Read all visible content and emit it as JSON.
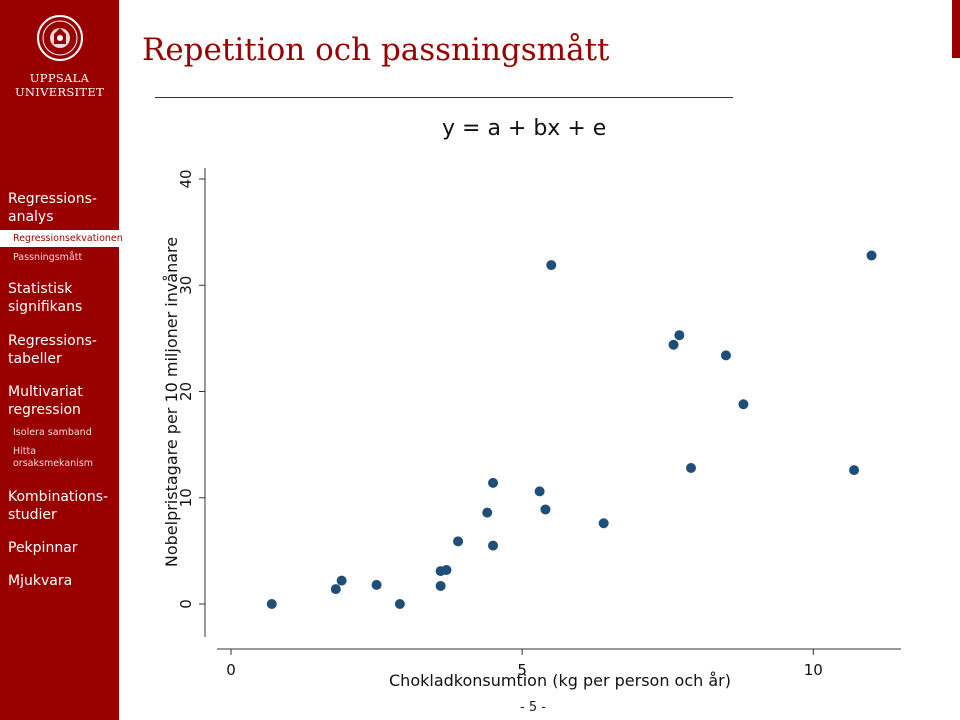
{
  "header": {
    "title": "Repetition och passningsmått",
    "formula": "y = a + bx + e",
    "logo_line1": "UPPSALA",
    "logo_line2": "UNIVERSITET"
  },
  "sidebar": {
    "items": [
      {
        "label": "Regressions-analys",
        "line1": "Regressions-",
        "line2": "analys",
        "subitems": [
          "Regressionsekvationen",
          "Passningsmått"
        ],
        "active_sub": "Regressionsekvationen"
      },
      {
        "label": "Statistisk signifikans",
        "line1": "Statistisk",
        "line2": "signifikans"
      },
      {
        "label": "Regressions-tabeller",
        "line1": "Regressions-",
        "line2": "tabeller"
      },
      {
        "label": "Multivariat regression",
        "line1": "Multivariat",
        "line2": "regression",
        "subitems": [
          "Isolera samband",
          "Hitta orsaksmekanism"
        ],
        "sub2_line1": "Hitta",
        "sub2_line2": "orsaksmekanism"
      },
      {
        "label": "Kombinations-studier",
        "line1": "Kombinations-",
        "line2": "studier"
      },
      {
        "label": "Pekpinnar",
        "line1": "Pekpinnar"
      },
      {
        "label": "Mjukvara",
        "line1": "Mjukvara"
      }
    ]
  },
  "footer": {
    "page": "- 5 -"
  },
  "colors": {
    "brand": "#990000",
    "marker": "#1f4e79"
  },
  "chart_data": {
    "type": "scatter",
    "xlabel": "Chokladkonsumtion (kg per person och år)",
    "ylabel": "Nobelpristagare per 10 miljoner invånare",
    "xlim": [
      0,
      11.3
    ],
    "ylim": [
      0,
      40
    ],
    "xticks": [
      0,
      5,
      10
    ],
    "yticks": [
      0,
      10,
      20,
      30,
      40
    ],
    "points": [
      {
        "x": 0.7,
        "y": 0.0
      },
      {
        "x": 1.8,
        "y": 1.4
      },
      {
        "x": 1.9,
        "y": 2.2
      },
      {
        "x": 2.5,
        "y": 1.8
      },
      {
        "x": 2.9,
        "y": 0.0
      },
      {
        "x": 3.6,
        "y": 3.1
      },
      {
        "x": 3.6,
        "y": 1.7
      },
      {
        "x": 3.7,
        "y": 3.2
      },
      {
        "x": 3.9,
        "y": 5.9
      },
      {
        "x": 4.4,
        "y": 8.6
      },
      {
        "x": 4.5,
        "y": 11.4
      },
      {
        "x": 4.5,
        "y": 5.5
      },
      {
        "x": 5.3,
        "y": 10.6
      },
      {
        "x": 5.4,
        "y": 8.9
      },
      {
        "x": 5.5,
        "y": 31.9
      },
      {
        "x": 6.4,
        "y": 7.6
      },
      {
        "x": 7.6,
        "y": 24.4
      },
      {
        "x": 7.7,
        "y": 25.3
      },
      {
        "x": 7.9,
        "y": 12.8
      },
      {
        "x": 8.5,
        "y": 23.4
      },
      {
        "x": 8.8,
        "y": 18.8
      },
      {
        "x": 10.7,
        "y": 12.6
      },
      {
        "x": 11.0,
        "y": 32.8
      }
    ],
    "grid": false
  }
}
